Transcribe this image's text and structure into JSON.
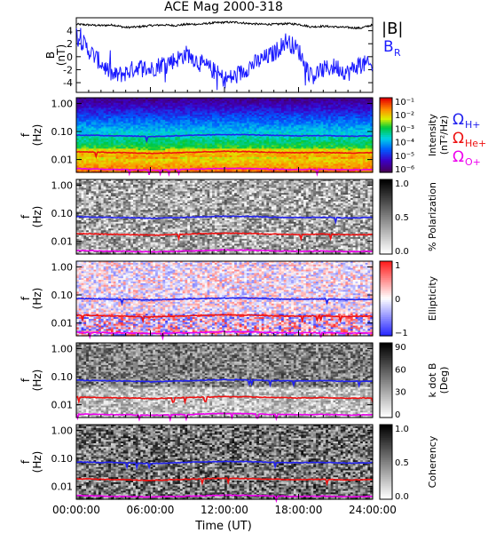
{
  "title": "ACE Mag 2000-318",
  "xlabel": "Time (UT)",
  "xticks": [
    "00:00:00",
    "06:00:00",
    "12:00:00",
    "18:00:00",
    "24:00:00"
  ],
  "colors": {
    "bmag": "#000000",
    "br": "#1a1aff",
    "h_plus": "#2222ee",
    "he_plus": "#ee1111",
    "o_plus": "#ee00ee"
  },
  "chart_data": [
    {
      "type": "line",
      "name": "B",
      "ylabel": "B",
      "yunit": "(nT)",
      "ylim": [
        -5.5,
        6
      ],
      "ytick_values": [
        4,
        2,
        0,
        -2,
        -4
      ],
      "ytick_labels": [
        "4",
        "2",
        "0",
        "-2",
        "-4"
      ],
      "xlim_hours": [
        0,
        24
      ],
      "series": [
        {
          "name": "|B|",
          "color_key": "bmag",
          "x_hours": [
            0,
            1,
            2,
            3,
            4,
            5,
            6,
            7,
            8,
            9,
            10,
            11,
            12,
            13,
            14,
            15,
            16,
            17,
            18,
            19,
            20,
            21,
            22,
            23,
            24
          ],
          "values": [
            5.0,
            4.9,
            4.8,
            4.9,
            4.5,
            4.6,
            4.8,
            4.9,
            4.8,
            5.0,
            5.0,
            5.2,
            5.3,
            5.3,
            5.1,
            5.0,
            5.0,
            5.1,
            5.0,
            4.6,
            4.7,
            4.6,
            4.5,
            4.4,
            4.9
          ]
        },
        {
          "name": "B_R",
          "color_key": "br",
          "x_hours": [
            0,
            1,
            2,
            3,
            4,
            5,
            6,
            7,
            8,
            9,
            10,
            11,
            12,
            13,
            14,
            15,
            16,
            17,
            18,
            19,
            20,
            21,
            22,
            23,
            24
          ],
          "values": [
            3.5,
            1.0,
            -1.0,
            -3.0,
            -2.5,
            -1.5,
            -2.0,
            -1.0,
            -0.5,
            0.5,
            -1.0,
            -2.0,
            -3.5,
            -3.0,
            -1.5,
            -0.5,
            0.5,
            2.5,
            1.0,
            -3.0,
            -2.0,
            -1.5,
            -2.5,
            -1.0,
            -1.5
          ]
        }
      ]
    },
    {
      "type": "heatmap",
      "name": "intensity",
      "ylabel": "f",
      "yunit": "(Hz)",
      "yscale": "log",
      "ytick_labels": [
        "1.00",
        "0.10",
        "0.01"
      ],
      "colorbar": {
        "colormap": "rainbow",
        "label": "Intensity",
        "unit": "(nT²/Hz)",
        "ticks": [
          "10⁻¹",
          "10⁻²",
          "10⁻³",
          "10⁻⁴",
          "10⁻⁵",
          "10⁻⁶"
        ]
      },
      "overlay_lines": true
    },
    {
      "type": "heatmap",
      "name": "polarization",
      "ylabel": "f",
      "yunit": "(Hz)",
      "yscale": "log",
      "ytick_labels": [
        "1.00",
        "0.10",
        "0.01"
      ],
      "colorbar": {
        "colormap": "gray",
        "label": "% Polarization",
        "unit": "",
        "ticks": [
          "1.0",
          "0.5",
          "0.0"
        ]
      },
      "overlay_lines": true
    },
    {
      "type": "heatmap",
      "name": "ellipticity",
      "ylabel": "f",
      "yunit": "(Hz)",
      "yscale": "log",
      "ytick_labels": [
        "1.00",
        "0.10",
        "0.01"
      ],
      "colorbar": {
        "colormap": "bwr",
        "label": "Ellipticity",
        "unit": "",
        "ticks": [
          "1",
          "0",
          "−1"
        ]
      },
      "overlay_lines": true
    },
    {
      "type": "heatmap",
      "name": "k-dot-b",
      "ylabel": "f",
      "yunit": "(Hz)",
      "yscale": "log",
      "ytick_labels": [
        "1.00",
        "0.10",
        "0.01"
      ],
      "colorbar": {
        "colormap": "gray",
        "label": "k dot B",
        "unit": "(Deg)",
        "ticks": [
          "90",
          "60",
          "30",
          "0"
        ]
      },
      "overlay_lines": true
    },
    {
      "type": "heatmap",
      "name": "coherency",
      "ylabel": "f",
      "yunit": "(Hz)",
      "yscale": "log",
      "ytick_labels": [
        "1.00",
        "0.10",
        "0.01"
      ],
      "colorbar": {
        "colormap": "gray",
        "label": "Coherency",
        "unit": "",
        "ticks": [
          "1.0",
          "0.5",
          "0.0"
        ]
      },
      "overlay_lines": true
    }
  ],
  "gyrofrequency_lines": {
    "x_hours": [
      0,
      2,
      4,
      6,
      8,
      10,
      12,
      14,
      16,
      18,
      20,
      22,
      24
    ],
    "h_plus_hz": [
      0.075,
      0.072,
      0.07,
      0.066,
      0.07,
      0.074,
      0.078,
      0.077,
      0.072,
      0.07,
      0.072,
      0.068,
      0.07
    ],
    "he_plus_hz": [
      0.019,
      0.018,
      0.0175,
      0.0165,
      0.0175,
      0.0185,
      0.0195,
      0.019,
      0.018,
      0.0175,
      0.018,
      0.017,
      0.0175
    ],
    "o_plus_hz": [
      0.0047,
      0.0045,
      0.0044,
      0.0042,
      0.0044,
      0.0046,
      0.0049,
      0.0048,
      0.0045,
      0.0044,
      0.0045,
      0.0043,
      0.0044
    ]
  },
  "labels": {
    "bmag": "|B|",
    "br": "B",
    "br_sub": "R",
    "omega": "Ω",
    "h_plus_sub": "H+",
    "he_plus_sub": "He+",
    "o_plus_sub": "O+"
  }
}
